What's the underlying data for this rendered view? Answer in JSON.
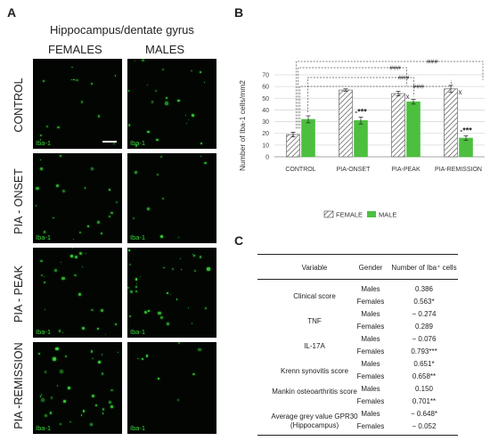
{
  "panels": {
    "a_letter": "A",
    "b_letter": "B",
    "c_letter": "C"
  },
  "panel_a": {
    "title": "Hippocampus/dentate gyrus",
    "columns": [
      "FEMALES",
      "MALES"
    ],
    "rows": [
      "CONTROL",
      "PIA - ONSET",
      "PIA - PEAK",
      "PIA -REMISSION"
    ],
    "stain_label": "Iba-1",
    "stain_color": "#39d83a"
  },
  "chart_data": {
    "type": "bar",
    "categories": [
      "CONTROL",
      "PIA-ONSET",
      "PIA-PEAK",
      "PIA-REMISSION"
    ],
    "series": [
      {
        "name": "FEMALE",
        "values": [
          19,
          57,
          54,
          58
        ],
        "errors": [
          2,
          1,
          2,
          3
        ],
        "pattern": "hatched"
      },
      {
        "name": "MALE",
        "values": [
          32,
          31,
          47,
          16
        ],
        "errors": [
          3,
          3,
          2,
          2
        ],
        "color": "#4dbf3f"
      }
    ],
    "ylabel": "Number of Iba-1 cells/mm2",
    "ylim": [
      0,
      70
    ],
    "yticks": [
      0,
      10,
      20,
      30,
      40,
      50,
      60,
      70
    ],
    "grid": true,
    "legend": "bottom",
    "annotations": {
      "male_vs_female": [
        {
          "category": "PIA-ONSET",
          "text": "***"
        },
        {
          "category": "PIA-REMISSION",
          "text": "***"
        }
      ],
      "x_marks": [
        {
          "category": "PIA-PEAK",
          "text": "x"
        },
        {
          "category": "PIA-REMISSION",
          "text": "x"
        }
      ],
      "brackets": [
        {
          "text": "###",
          "level": 1
        },
        {
          "text": "###",
          "level": 2
        },
        {
          "text": "###",
          "level": 3
        },
        {
          "text": "###",
          "level": 4
        }
      ]
    }
  },
  "table": {
    "headers": [
      "Variable",
      "Gender",
      "Number of Iba⁺ cells"
    ],
    "rows": [
      {
        "variable": "Clinical score",
        "entries": [
          [
            "Males",
            "0.386"
          ],
          [
            "Females",
            "0.563*"
          ]
        ]
      },
      {
        "variable": "TNF",
        "entries": [
          [
            "Males",
            "− 0.274"
          ],
          [
            "Females",
            "0.289"
          ]
        ]
      },
      {
        "variable": "IL-17A",
        "entries": [
          [
            "Males",
            "− 0.076"
          ],
          [
            "Females",
            "0.793***"
          ]
        ]
      },
      {
        "variable": "Krenn synovitis score",
        "entries": [
          [
            "Males",
            "0.651*"
          ],
          [
            "Females",
            "0.658**"
          ]
        ]
      },
      {
        "variable": "Mankin osteoarthritis score",
        "entries": [
          [
            "Males",
            "0.150"
          ],
          [
            "Females",
            "0.701**"
          ]
        ]
      },
      {
        "variable": "Average grey value GPR30 (Hippocampus)",
        "entries": [
          [
            "Males",
            "− 0.648*"
          ],
          [
            "Females",
            "− 0.052"
          ]
        ]
      }
    ]
  }
}
